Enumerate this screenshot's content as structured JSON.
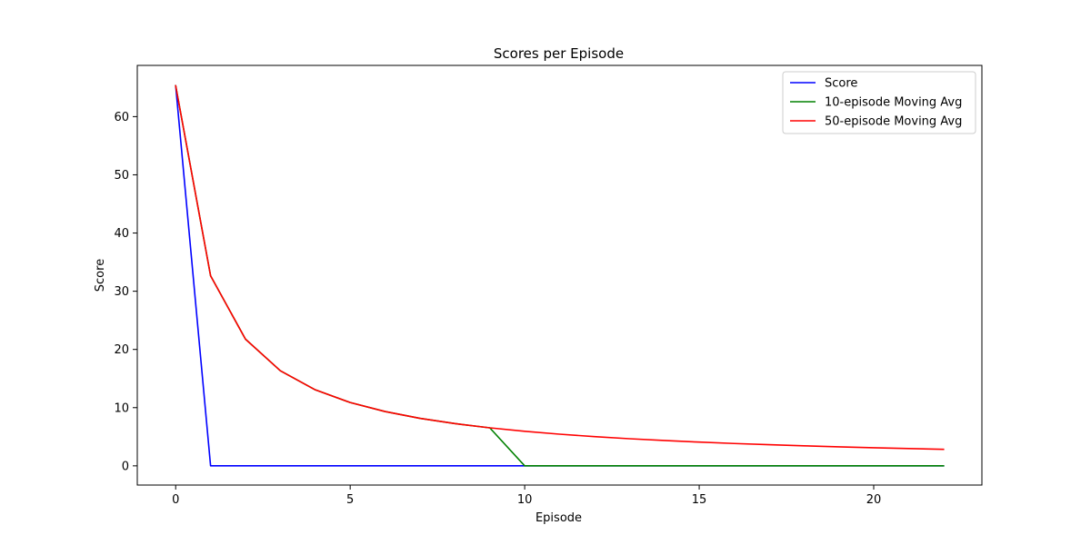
{
  "chart_data": {
    "type": "line",
    "title": "Scores per Episode",
    "xlabel": "Episode",
    "ylabel": "Score",
    "xlim": [
      -1.1,
      23.1
    ],
    "ylim": [
      -3.3,
      68.8
    ],
    "xticks": [
      0,
      5,
      10,
      15,
      20
    ],
    "yticks": [
      0,
      10,
      20,
      30,
      40,
      50,
      60
    ],
    "grid": false,
    "legend_position": "top-right",
    "x": [
      0,
      1,
      2,
      3,
      4,
      5,
      6,
      7,
      8,
      9,
      10,
      11,
      12,
      13,
      14,
      15,
      16,
      17,
      18,
      19,
      20,
      21,
      22
    ],
    "series": [
      {
        "name": "Score",
        "color": "#0000ff",
        "values": [
          65.3,
          0,
          0,
          0,
          0,
          0,
          0,
          0,
          0,
          0,
          0,
          0,
          0,
          0,
          0,
          0,
          0,
          0,
          0,
          0,
          0,
          0,
          0
        ]
      },
      {
        "name": "10-episode Moving Avg",
        "color": "#008000",
        "values": [
          65.3,
          32.65,
          21.77,
          16.33,
          13.06,
          10.88,
          9.33,
          8.16,
          7.26,
          6.53,
          0,
          0,
          0,
          0,
          0,
          0,
          0,
          0,
          0,
          0,
          0,
          0,
          0
        ]
      },
      {
        "name": "50-episode Moving Avg",
        "color": "#ff0000",
        "values": [
          65.3,
          32.65,
          21.77,
          16.33,
          13.06,
          10.88,
          9.33,
          8.16,
          7.26,
          6.53,
          5.94,
          5.44,
          5.02,
          4.66,
          4.35,
          4.08,
          3.84,
          3.63,
          3.44,
          3.27,
          3.11,
          2.97,
          2.84
        ]
      }
    ]
  }
}
